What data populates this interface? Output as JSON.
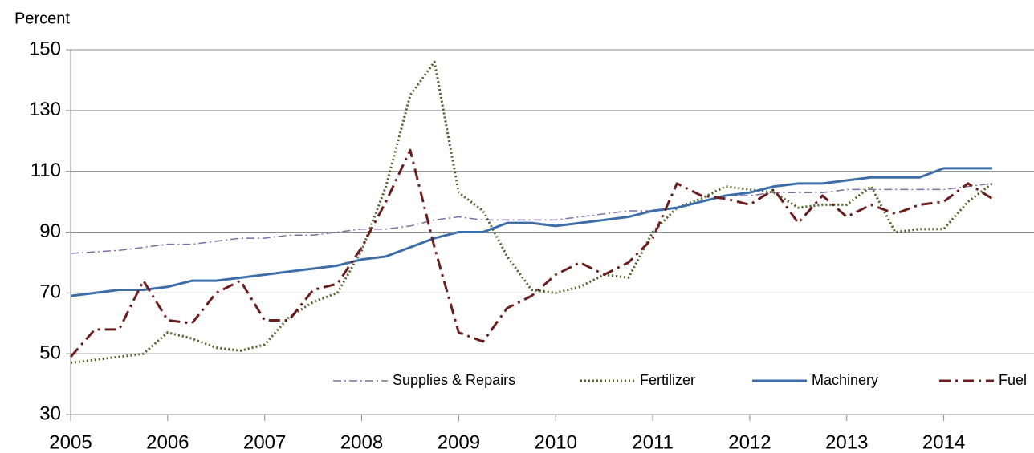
{
  "chart_data": {
    "type": "line",
    "y_label": "Percent",
    "x": [
      2005,
      2005.25,
      2005.5,
      2005.75,
      2006,
      2006.25,
      2006.5,
      2006.75,
      2007,
      2007.25,
      2007.5,
      2007.75,
      2008,
      2008.25,
      2008.5,
      2008.75,
      2009,
      2009.25,
      2009.5,
      2009.75,
      2010,
      2010.25,
      2010.5,
      2010.75,
      2011,
      2011.25,
      2011.5,
      2011.75,
      2012,
      2012.25,
      2012.5,
      2012.75,
      2013,
      2013.25,
      2013.5,
      2013.75,
      2014,
      2014.25,
      2014.5
    ],
    "series": [
      {
        "name": "Supplies & Repairs",
        "color": "#7f6fa7",
        "style": "dashdot",
        "values": [
          83,
          83.5,
          84,
          85,
          86,
          86,
          87,
          88,
          88,
          89,
          89,
          90,
          91,
          91,
          92,
          94,
          95,
          94,
          94,
          94,
          94,
          95,
          96,
          97,
          97,
          98,
          100,
          102,
          102,
          103,
          103,
          103,
          104,
          104,
          104,
          104,
          104,
          105,
          106
        ]
      },
      {
        "name": "Fertilizer",
        "color": "#4f6228",
        "style": "dotted",
        "values": [
          47,
          48,
          49,
          50,
          57,
          55,
          52,
          51,
          53,
          62,
          67,
          70,
          84,
          105,
          135,
          146,
          103,
          97,
          82,
          71,
          70,
          72,
          76,
          75,
          90,
          98,
          101,
          105,
          104,
          103,
          98,
          99,
          99,
          105,
          90,
          91,
          91,
          100,
          106
        ]
      },
      {
        "name": "Machinery",
        "color": "#3e6ea8",
        "style": "solid",
        "values": [
          69,
          70,
          71,
          71,
          72,
          74,
          74,
          75,
          76,
          77,
          78,
          79,
          81,
          82,
          85,
          88,
          90,
          90,
          93,
          93,
          92,
          93,
          94,
          95,
          97,
          98,
          100,
          102,
          103,
          105,
          106,
          106,
          107,
          108,
          108,
          108,
          111,
          111,
          111
        ]
      },
      {
        "name": "Fuel",
        "color": "#6b1f1f",
        "style": "dashdot-heavy",
        "values": [
          49,
          58,
          58,
          74,
          61,
          60,
          70,
          74,
          61,
          61,
          71,
          73,
          85,
          100,
          117,
          85,
          57,
          54,
          65,
          69,
          76,
          80,
          76,
          80,
          88,
          106,
          102,
          101,
          99,
          104,
          93,
          102,
          95,
          99,
          96,
          99,
          100,
          106,
          101
        ]
      }
    ],
    "xlim": [
      2005,
      2014.93
    ],
    "xticks": [
      2005,
      2006,
      2007,
      2008,
      2009,
      2010,
      2011,
      2012,
      2013,
      2014
    ],
    "ylim": [
      30,
      150
    ],
    "yticks": [
      30,
      50,
      70,
      90,
      110,
      130,
      150
    ],
    "grid": true
  }
}
